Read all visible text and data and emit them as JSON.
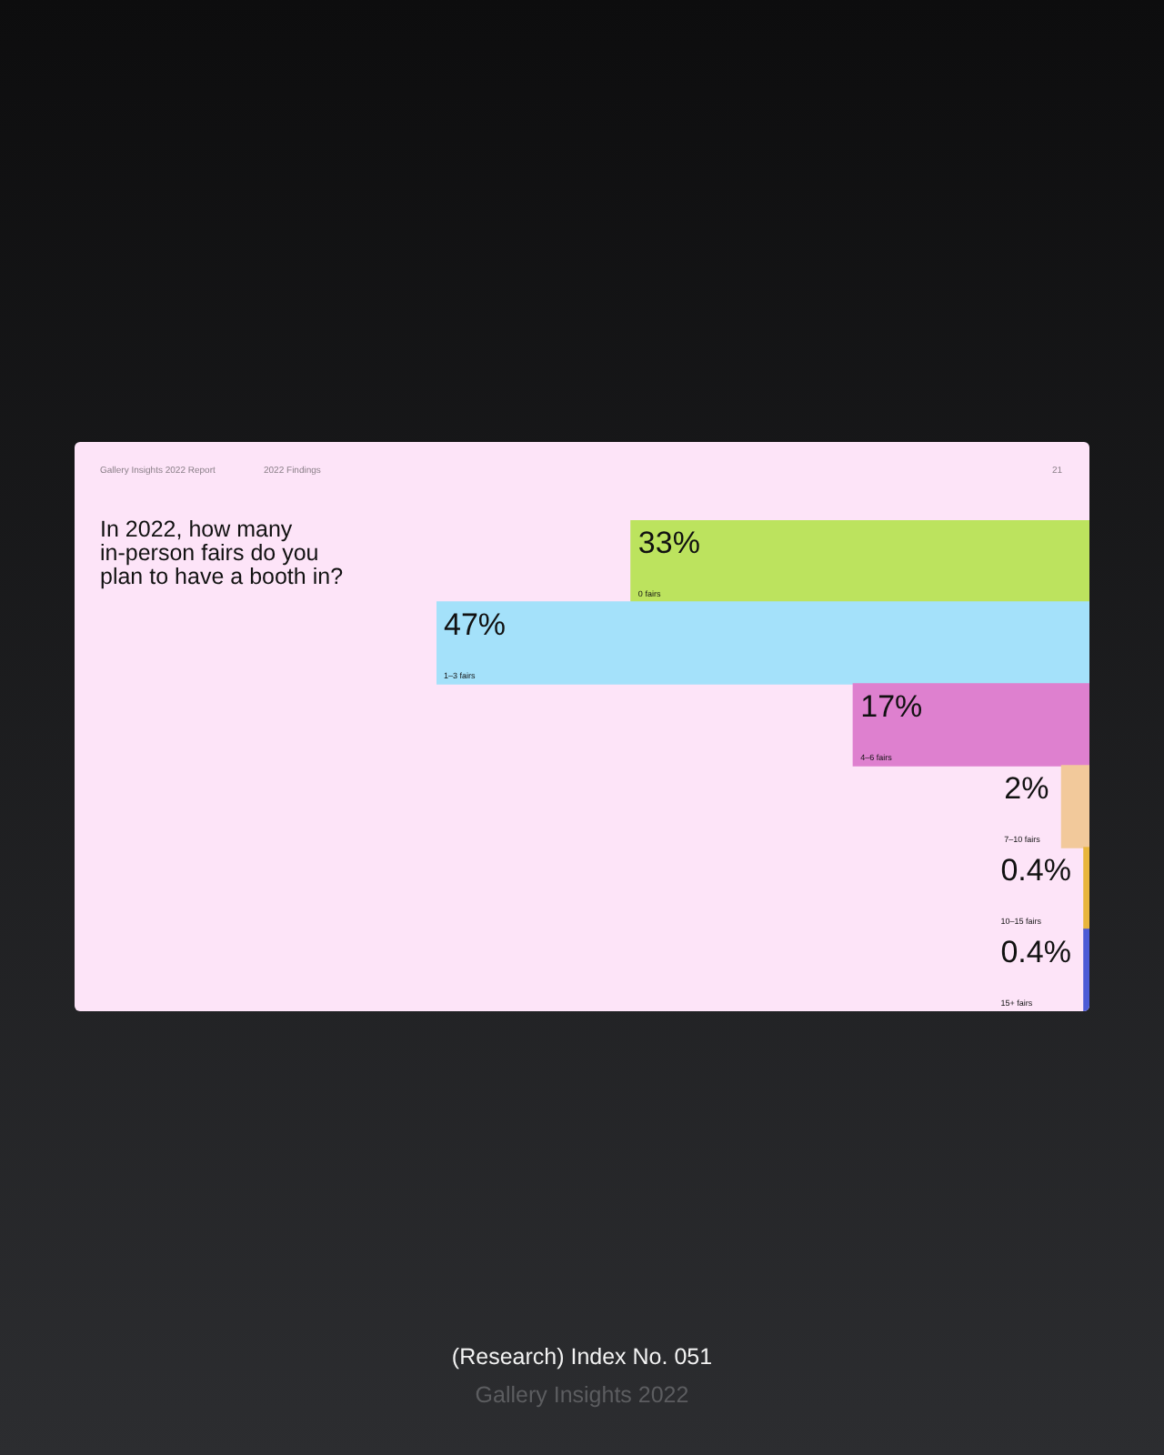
{
  "chart_data": {
    "type": "bar",
    "orientation": "horizontal",
    "title": "In 2022, how many in-person fairs do you plan to have a booth in?",
    "categories": [
      "0 fairs",
      "1–3 fairs",
      "4–6 fairs",
      "7–10 fairs",
      "10–15 fairs",
      "15+ fairs"
    ],
    "values": [
      33,
      47,
      17,
      2,
      0.4,
      0.4
    ],
    "value_labels": [
      "33%",
      "47%",
      "17%",
      "2%",
      "0.4%",
      "0.4%"
    ],
    "colors": [
      "#bce35e",
      "#a4e1fa",
      "#de80cf",
      "#f2c99b",
      "#e8b53c",
      "#4c5ad6"
    ],
    "tick_labels": "y",
    "annotations": [
      "Gallery Insights 2022 Report",
      "2022 Findings",
      "21",
      "(Research) Index No. 051",
      "Gallery Insights 2022"
    ]
  }
}
